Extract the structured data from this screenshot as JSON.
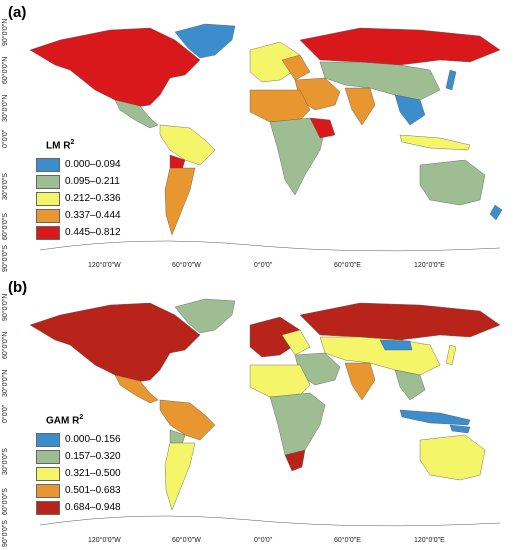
{
  "panels": [
    {
      "label": "(a)",
      "legend_title_main": "LM R",
      "legend_title_sup": "2",
      "legend": [
        {
          "text": "0.000–0.094",
          "color": "#3b8dcb"
        },
        {
          "text": "0.095–0.211",
          "color": "#9fbd93"
        },
        {
          "text": "0.212–0.336",
          "color": "#f5f56a"
        },
        {
          "text": "0.337–0.444",
          "color": "#e8962f"
        },
        {
          "text": "0.445–0.812",
          "color": "#d9181c"
        }
      ]
    },
    {
      "label": "(b)",
      "legend_title_main": "GAM R",
      "legend_title_sup": "2",
      "legend": [
        {
          "text": "0.000–0.156",
          "color": "#3b8dcb"
        },
        {
          "text": "0.157–0.320",
          "color": "#9fbd93"
        },
        {
          "text": "0.321–0.500",
          "color": "#f5f56a"
        },
        {
          "text": "0.501–0.683",
          "color": "#e8962f"
        },
        {
          "text": "0.684–0.948",
          "color": "#b8231a"
        }
      ]
    }
  ],
  "x_ticks": [
    "120°0'0\"W",
    "60°0'0\"W",
    "0°0'0\"",
    "60°0'0\"E",
    "120°0'0\"E"
  ],
  "y_ticks": [
    "90°0'0\"N",
    "60°0'0\"N",
    "30°0'0\"N",
    "0°0'0\"",
    "30°0'0\"S",
    "60°0'0\"S",
    "90°0'0\"S"
  ]
}
